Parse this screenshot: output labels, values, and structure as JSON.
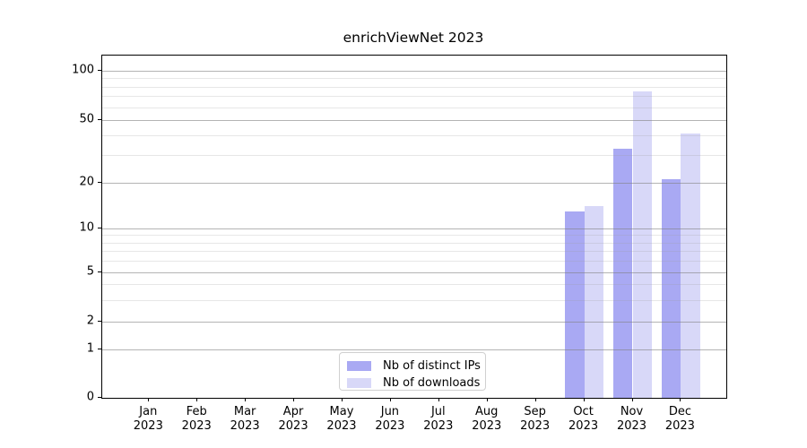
{
  "chart_data": {
    "type": "bar",
    "title": "enrichViewNet 2023",
    "categories": [
      "Jan 2023",
      "Feb 2023",
      "Mar 2023",
      "Apr 2023",
      "May 2023",
      "Jun 2023",
      "Jul 2023",
      "Aug 2023",
      "Sep 2023",
      "Oct 2023",
      "Nov 2023",
      "Dec 2023"
    ],
    "series": [
      {
        "name": "Nb of distinct IPs",
        "color": "#a9a9f3",
        "values": [
          null,
          null,
          null,
          null,
          null,
          null,
          null,
          null,
          null,
          13,
          33,
          21
        ]
      },
      {
        "name": "Nb of downloads",
        "color": "#d8d8f8",
        "values": [
          null,
          null,
          null,
          null,
          null,
          null,
          null,
          null,
          null,
          14,
          75,
          41
        ]
      }
    ],
    "yscale": "symlog",
    "yticks": [
      0,
      1,
      2,
      5,
      10,
      20,
      50,
      100
    ],
    "minor_yticks": [
      3,
      4,
      6,
      7,
      8,
      9,
      30,
      40,
      60,
      70,
      80,
      90
    ],
    "ylim": [
      0,
      122
    ],
    "xlabel": "",
    "ylabel": "",
    "grid": true,
    "legend_position": "lower center"
  },
  "colors": {
    "grid_major": "#b4b4b4",
    "grid_minor": "#e7e7e7",
    "axis": "#000000",
    "background": "#ffffff"
  }
}
